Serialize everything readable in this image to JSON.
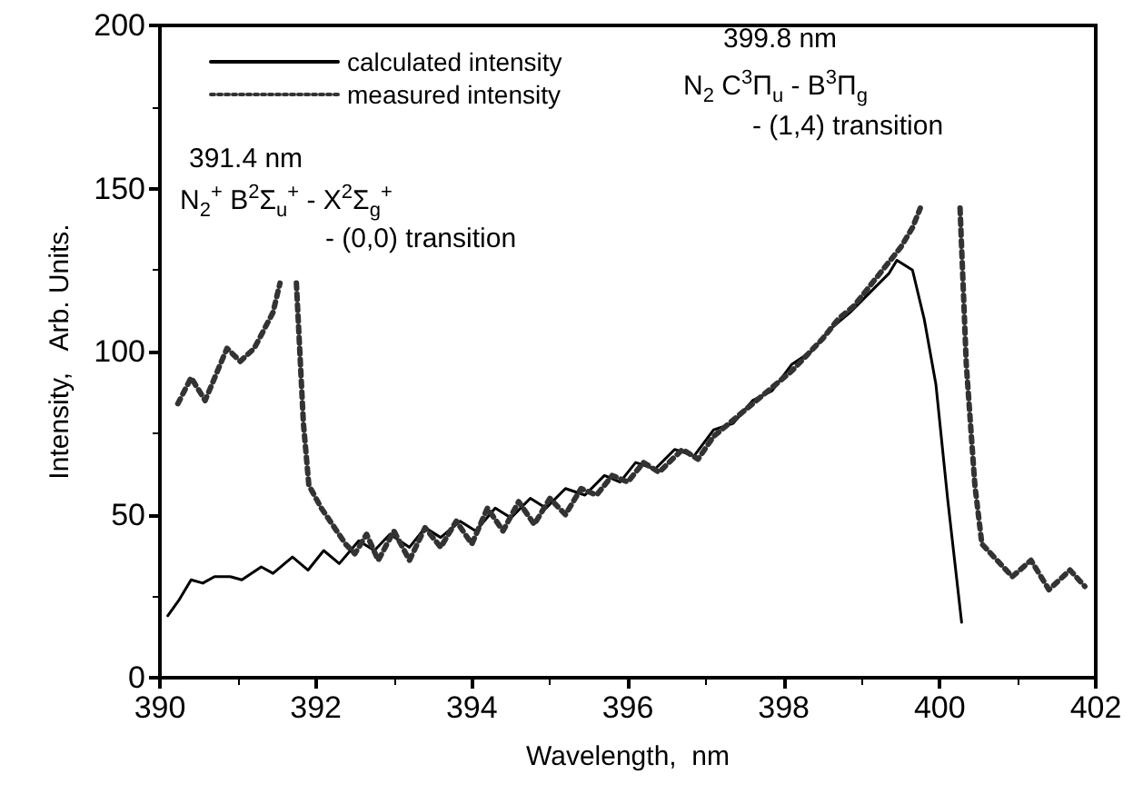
{
  "chart_data": {
    "type": "line",
    "xlabel": "Wavelength,  nm",
    "ylabel": "Intensity,   Arb. Units.",
    "xlim": [
      390,
      402
    ],
    "xticks": [
      390,
      392,
      394,
      396,
      398,
      400,
      402
    ],
    "ylim": [
      0,
      200
    ],
    "yticks": [
      0,
      50,
      100,
      150,
      200
    ],
    "grid": false,
    "legend": "top left",
    "marker": "none",
    "annotations": [
      "391.4 nm",
      "N$_{2}$$^{+}$ B$^{2}$Σ$_{u}$$^{+}$ - X$^{2}$Σ$_{g}$$^{+}$",
      "- (0,0) transition",
      "399.8 nm",
      "N$_{2}$ C$^{3}$Π$_{u}$ - B$^{3}$Π$_{g}$",
      "- (1,4) transition"
    ],
    "series": [
      {
        "name": "calculated intensity",
        "color": "#000000",
        "line_style": "solid",
        "x": [
          390.1,
          390.25,
          390.4,
          390.55,
          390.7,
          390.9,
          391.05,
          391.3,
          391.45,
          391.7,
          391.9,
          392.1,
          392.3,
          392.55,
          392.75,
          392.95,
          393.2,
          393.4,
          393.6,
          393.85,
          394.05,
          394.3,
          394.5,
          394.75,
          394.95,
          395.2,
          395.45,
          395.7,
          395.9,
          396.1,
          396.35,
          396.6,
          396.85,
          397.1,
          397.35,
          397.6,
          397.85,
          398.1,
          398.35,
          398.6,
          398.85,
          399.1,
          399.35,
          399.45,
          399.65,
          399.8,
          399.95,
          400.1,
          400.28
        ],
        "values": [
          19,
          24,
          30,
          29,
          31,
          31,
          30,
          34,
          32,
          37,
          33,
          39,
          35,
          42,
          39,
          44,
          40,
          46,
          43,
          48,
          45,
          52,
          49,
          55,
          52,
          58,
          56,
          62,
          60,
          66,
          64,
          70,
          68,
          76,
          78,
          85,
          88,
          96,
          100,
          107,
          112,
          118,
          124,
          128,
          125,
          110,
          90,
          55,
          17
        ]
      },
      {
        "name": "measured intensity",
        "color": "#333333",
        "line_style": "dotted",
        "x": [
          390.23,
          390.4,
          390.58,
          390.86,
          391.03,
          391.21,
          391.45,
          391.54,
          391.65,
          391.75,
          391.84,
          391.91,
          392.07,
          392.38,
          392.5,
          392.65,
          392.8,
          393.0,
          393.2,
          393.4,
          393.6,
          393.8,
          394.0,
          394.2,
          394.4,
          394.6,
          394.8,
          395.0,
          395.2,
          395.4,
          395.6,
          395.8,
          396.0,
          396.2,
          396.4,
          396.7,
          396.9,
          397.1,
          397.3,
          397.5,
          397.7,
          397.9,
          398.1,
          398.3,
          398.5,
          398.7,
          398.9,
          399.1,
          399.3,
          399.5,
          399.65,
          399.75,
          400.0,
          400.26,
          400.34,
          400.45,
          400.54,
          400.93,
          401.17,
          401.4,
          401.67,
          401.86
        ],
        "values": [
          84,
          92,
          85,
          101,
          97,
          101,
          112,
          121,
          null,
          121,
          78,
          59,
          52,
          41,
          38,
          44,
          36,
          45,
          36,
          46,
          40,
          48,
          41,
          52,
          45,
          54,
          47,
          55,
          50,
          58,
          56,
          62,
          60,
          66,
          63,
          70,
          67,
          74,
          78,
          82,
          86,
          90,
          94,
          99,
          104,
          110,
          114,
          120,
          126,
          132,
          138,
          144,
          null,
          144,
          96,
          59,
          41,
          31,
          36,
          27,
          33,
          28
        ]
      }
    ]
  }
}
